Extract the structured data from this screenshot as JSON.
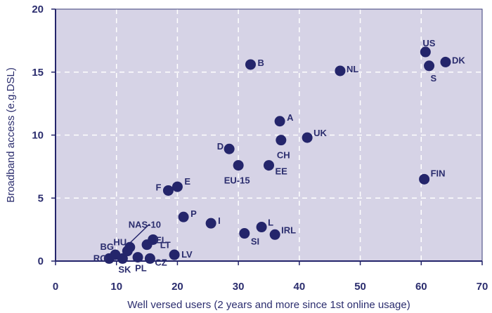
{
  "chart_data": {
    "type": "scatter",
    "xlabel": "Well versed users (2 years and more since 1st online usage)",
    "ylabel": "Broadband access (e.g.DSL)",
    "xlim": [
      0,
      70
    ],
    "ylim": [
      0,
      20
    ],
    "xticks": [
      0,
      10,
      20,
      30,
      40,
      50,
      60,
      70
    ],
    "yticks": [
      0,
      5,
      10,
      15,
      20
    ],
    "grid": true,
    "colors": {
      "marker": "#24256b",
      "plot_bg": "#d6d3e6",
      "grid": "#ffffff",
      "text": "#2b2d6e"
    },
    "points": [
      {
        "label": "RO",
        "x": 8.8,
        "y": 0.2
      },
      {
        "label": "BG",
        "x": 9.8,
        "y": 0.5
      },
      {
        "label": "SK",
        "x": 11.0,
        "y": 0.2
      },
      {
        "label": "HU",
        "x": 11.8,
        "y": 0.8
      },
      {
        "label": "NAS-10",
        "x": 12.2,
        "y": 1.1
      },
      {
        "label": "PL",
        "x": 13.5,
        "y": 0.3
      },
      {
        "label": "CZ",
        "x": 15.5,
        "y": 0.2
      },
      {
        "label": "EL",
        "x": 15.0,
        "y": 1.3
      },
      {
        "label": "LT",
        "x": 16.0,
        "y": 1.7
      },
      {
        "label": "LV",
        "x": 19.5,
        "y": 0.5
      },
      {
        "label": "P",
        "x": 21.0,
        "y": 3.5
      },
      {
        "label": "F",
        "x": 18.5,
        "y": 5.6
      },
      {
        "label": "E",
        "x": 20.0,
        "y": 5.9
      },
      {
        "label": "I",
        "x": 25.5,
        "y": 3.0
      },
      {
        "label": "SI",
        "x": 31.0,
        "y": 2.2
      },
      {
        "label": "L",
        "x": 33.8,
        "y": 2.7
      },
      {
        "label": "IRL",
        "x": 36.0,
        "y": 2.1
      },
      {
        "label": "D",
        "x": 28.5,
        "y": 8.9
      },
      {
        "label": "EU-15",
        "x": 30.0,
        "y": 7.6
      },
      {
        "label": "EE",
        "x": 35.0,
        "y": 7.6
      },
      {
        "label": "CH",
        "x": 37.0,
        "y": 9.6
      },
      {
        "label": "A",
        "x": 36.8,
        "y": 11.1
      },
      {
        "label": "UK",
        "x": 41.3,
        "y": 9.8
      },
      {
        "label": "B",
        "x": 32.0,
        "y": 15.6
      },
      {
        "label": "NL",
        "x": 46.7,
        "y": 15.1
      },
      {
        "label": "FIN",
        "x": 60.5,
        "y": 6.5
      },
      {
        "label": "US",
        "x": 60.7,
        "y": 16.6
      },
      {
        "label": "S",
        "x": 61.3,
        "y": 15.5
      },
      {
        "label": "DK",
        "x": 64.0,
        "y": 15.8
      }
    ]
  }
}
